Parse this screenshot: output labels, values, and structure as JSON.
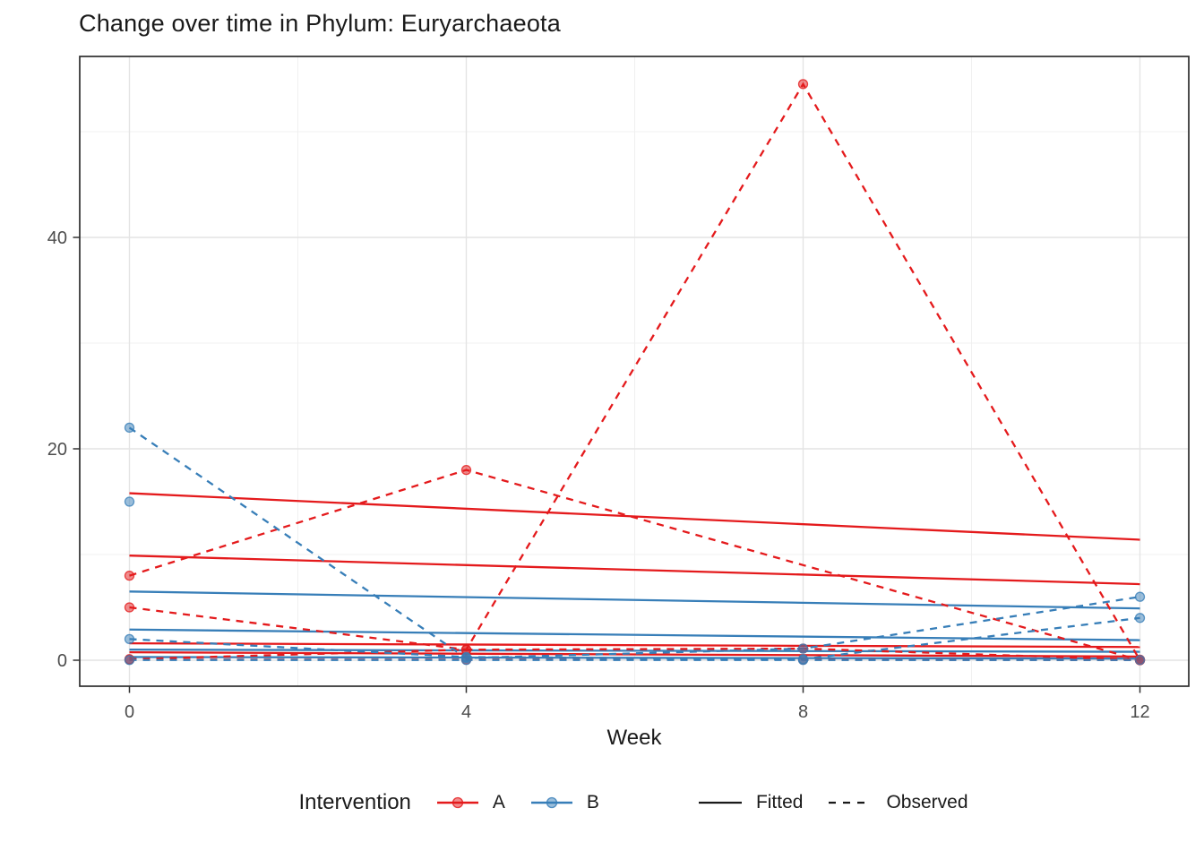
{
  "chart_data": {
    "type": "line",
    "title": "Change over time in Phylum: Euryarchaeota",
    "xlabel": "Week",
    "ylabel": "",
    "x_ticks": [
      0,
      4,
      8,
      12
    ],
    "x_minor_ticks": [
      2,
      6,
      10
    ],
    "y_ticks": [
      0,
      20,
      40
    ],
    "y_minor_ticks": [
      10,
      30,
      50
    ],
    "xlim": [
      -0.6,
      12.6
    ],
    "ylim": [
      -2.9,
      57.1
    ],
    "grid": true,
    "panel_border_color": "#2d2d2d",
    "grid_major_color": "#e4e4e4",
    "grid_minor_color": "#f0f0f0",
    "tick_label_color": "#4d4d4d",
    "legend": {
      "title": "Intervention",
      "position": "bottom",
      "groups": [
        {
          "label": "A",
          "color": "#E41A1C"
        },
        {
          "label": "B",
          "color": "#377EB8"
        }
      ],
      "linetypes": [
        {
          "label": "Fitted",
          "style": "solid"
        },
        {
          "label": "Observed",
          "style": "dashed"
        }
      ]
    },
    "series": [
      {
        "group": "A",
        "linetype": "Fitted",
        "points": [
          [
            0,
            15.8
          ],
          [
            12,
            11.4
          ]
        ]
      },
      {
        "group": "A",
        "linetype": "Fitted",
        "points": [
          [
            0,
            9.9
          ],
          [
            12,
            7.2
          ]
        ]
      },
      {
        "group": "A",
        "linetype": "Fitted",
        "points": [
          [
            0,
            1.6
          ],
          [
            12,
            1.25
          ]
        ]
      },
      {
        "group": "A",
        "linetype": "Fitted",
        "points": [
          [
            0,
            0.75
          ],
          [
            12,
            0.35
          ]
        ]
      },
      {
        "group": "B",
        "linetype": "Fitted",
        "points": [
          [
            0,
            6.5
          ],
          [
            12,
            4.9
          ]
        ]
      },
      {
        "group": "B",
        "linetype": "Fitted",
        "points": [
          [
            0,
            2.9
          ],
          [
            12,
            1.9
          ]
        ]
      },
      {
        "group": "B",
        "linetype": "Fitted",
        "points": [
          [
            0,
            1.0
          ],
          [
            12,
            0.8
          ]
        ]
      },
      {
        "group": "B",
        "linetype": "Fitted",
        "points": [
          [
            0,
            0.3
          ],
          [
            12,
            0.15
          ]
        ]
      },
      {
        "group": "A",
        "linetype": "Observed",
        "points": [
          [
            0,
            8
          ],
          [
            4,
            18
          ],
          [
            12,
            0
          ]
        ]
      },
      {
        "group": "A",
        "linetype": "Observed",
        "points": [
          [
            0,
            5
          ],
          [
            4,
            1
          ],
          [
            8,
            54.5
          ],
          [
            12,
            0
          ]
        ]
      },
      {
        "group": "A",
        "linetype": "Observed",
        "points": [
          [
            0,
            0.1
          ],
          [
            4,
            1
          ],
          [
            8,
            1.1
          ],
          [
            12,
            0.05
          ]
        ]
      },
      {
        "group": "A",
        "linetype": "Observed",
        "points": [
          [
            0,
            0.05
          ],
          [
            4,
            0.05
          ],
          [
            8,
            0.05
          ],
          [
            12,
            0.02
          ]
        ]
      },
      {
        "group": "B",
        "linetype": "Observed",
        "points": [
          [
            0,
            22
          ],
          [
            4,
            0.2
          ],
          [
            8,
            1.1
          ],
          [
            12,
            6
          ]
        ]
      },
      {
        "group": "B",
        "linetype": "Observed",
        "points": [
          [
            0,
            15
          ]
        ]
      },
      {
        "group": "B",
        "linetype": "Observed",
        "points": [
          [
            0,
            2
          ],
          [
            4,
            0.3
          ],
          [
            8,
            0.1
          ],
          [
            12,
            4
          ]
        ]
      },
      {
        "group": "B",
        "linetype": "Observed",
        "points": [
          [
            0,
            0.02
          ],
          [
            4,
            0.02
          ],
          [
            8,
            0.02
          ],
          [
            12,
            0.02
          ]
        ]
      }
    ]
  }
}
